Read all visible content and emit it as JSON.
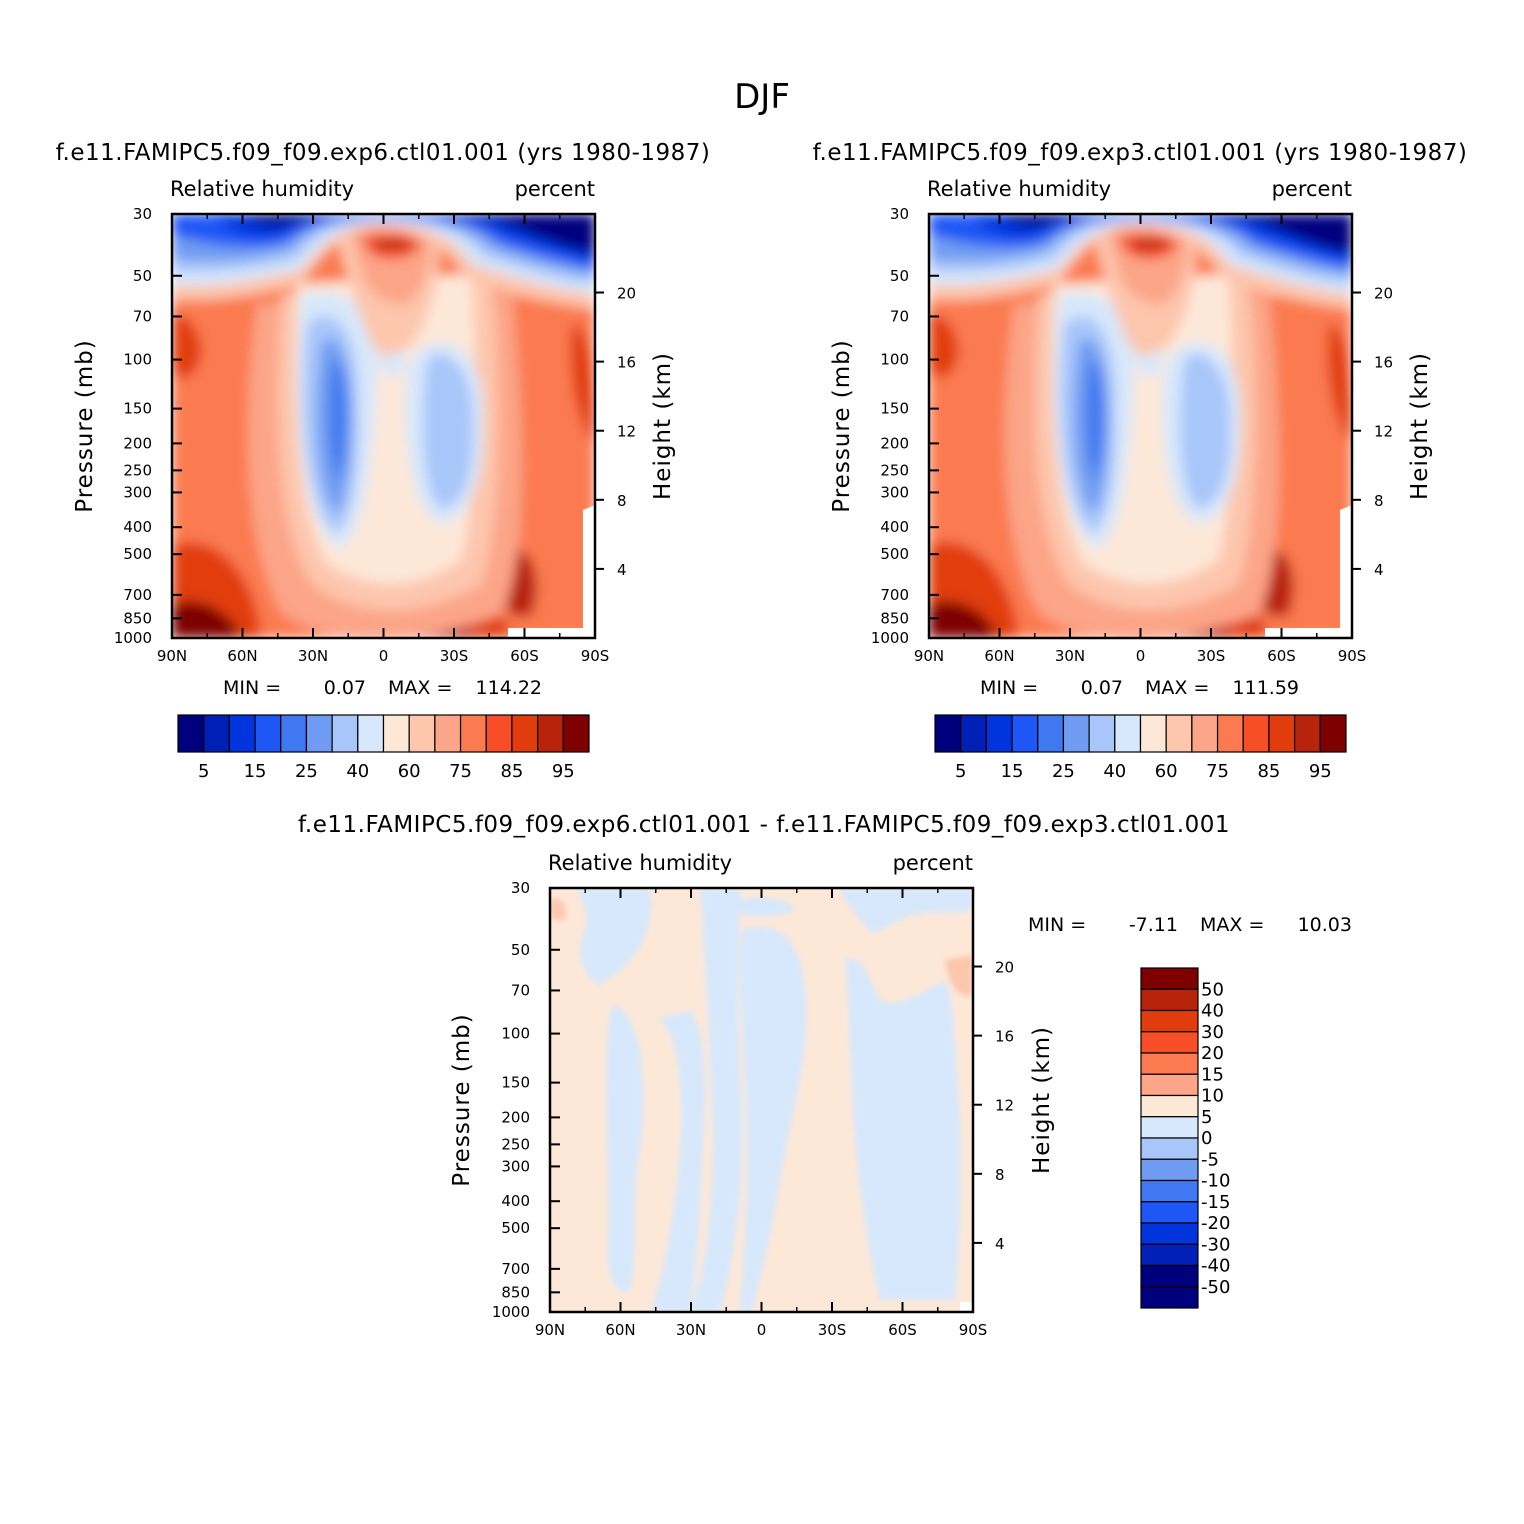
{
  "title": "DJF",
  "panels": [
    {
      "subtitle": "f.e11.FAMIPC5.f09_f09.exp6.ctl01.001 (yrs 1980-1987)",
      "left_label": "Relative humidity",
      "right_label": "percent",
      "stats": {
        "min_label": "MIN =",
        "min": "0.07",
        "max_label": "MAX =",
        "max": "114.22"
      }
    },
    {
      "subtitle": "f.e11.FAMIPC5.f09_f09.exp3.ctl01.001 (yrs 1980-1987)",
      "left_label": "Relative humidity",
      "right_label": "percent",
      "stats": {
        "min_label": "MIN =",
        "min": "0.07",
        "max_label": "MAX =",
        "max": "111.59"
      }
    },
    {
      "subtitle": "f.e11.FAMIPC5.f09_f09.exp6.ctl01.001 - f.e11.FAMIPC5.f09_f09.exp3.ctl01.001",
      "left_label": "Relative humidity",
      "right_label": "percent",
      "stats": {
        "min_label": "MIN =",
        "min": "-7.11",
        "max_label": "MAX =",
        "max": "10.03"
      }
    }
  ],
  "chart_data": [
    {
      "type": "heatmap",
      "xlabel": "",
      "ylabel": "Pressure (mb)",
      "y2label": "Height (km)",
      "x_ticks": [
        "90N",
        "60N",
        "30N",
        "0",
        "30S",
        "60S",
        "90S"
      ],
      "y_ticks": [
        "30",
        "50",
        "70",
        "100",
        "150",
        "200",
        "250",
        "300",
        "400",
        "500",
        "700",
        "850",
        "1000"
      ],
      "y2_ticks": [
        "20",
        "16",
        "12",
        "8",
        "4"
      ],
      "colorbar_levels": [
        "5",
        "15",
        "25",
        "40",
        "60",
        "75",
        "85",
        "95"
      ],
      "min": 0.07,
      "max": 114.22,
      "colors": [
        "#00007f",
        "#0020b8",
        "#0035dd",
        "#1e57f5",
        "#3f78f0",
        "#6f9cf2",
        "#a9c6fa",
        "#d7e8fc",
        "#fde8d8",
        "#fdc6ad",
        "#fca588",
        "#fb7a4f",
        "#f64e26",
        "#e13d0c",
        "#b8240b",
        "#7e0000"
      ]
    },
    {
      "type": "heatmap",
      "xlabel": "",
      "ylabel": "Pressure (mb)",
      "y2label": "Height (km)",
      "x_ticks": [
        "90N",
        "60N",
        "30N",
        "0",
        "30S",
        "60S",
        "90S"
      ],
      "y_ticks": [
        "30",
        "50",
        "70",
        "100",
        "150",
        "200",
        "250",
        "300",
        "400",
        "500",
        "700",
        "850",
        "1000"
      ],
      "y2_ticks": [
        "20",
        "16",
        "12",
        "8",
        "4"
      ],
      "colorbar_levels": [
        "5",
        "15",
        "25",
        "40",
        "60",
        "75",
        "85",
        "95"
      ],
      "min": 0.07,
      "max": 111.59,
      "colors": [
        "#00007f",
        "#0020b8",
        "#0035dd",
        "#1e57f5",
        "#3f78f0",
        "#6f9cf2",
        "#a9c6fa",
        "#d7e8fc",
        "#fde8d8",
        "#fdc6ad",
        "#fca588",
        "#fb7a4f",
        "#f64e26",
        "#e13d0c",
        "#b8240b",
        "#7e0000"
      ]
    },
    {
      "type": "heatmap",
      "xlabel": "",
      "ylabel": "Pressure (mb)",
      "y2label": "Height (km)",
      "x_ticks": [
        "90N",
        "60N",
        "30N",
        "0",
        "30S",
        "60S",
        "90S"
      ],
      "y_ticks": [
        "30",
        "50",
        "70",
        "100",
        "150",
        "200",
        "250",
        "300",
        "400",
        "500",
        "700",
        "850",
        "1000"
      ],
      "y2_ticks": [
        "20",
        "16",
        "12",
        "8",
        "4"
      ],
      "colorbar_levels": [
        "50",
        "40",
        "30",
        "20",
        "15",
        "10",
        "5",
        "0",
        "-5",
        "-10",
        "-15",
        "-20",
        "-30",
        "-40",
        "-50"
      ],
      "min": -7.11,
      "max": 10.03,
      "colors": [
        "#7e0000",
        "#b8240b",
        "#e13d0c",
        "#f64e26",
        "#fb7a4f",
        "#fca588",
        "#fde8d8",
        "#d7e8fc",
        "#a9c6fa",
        "#6f9cf2",
        "#3f78f0",
        "#1e57f5",
        "#0035dd",
        "#0020b8",
        "#00007f"
      ]
    }
  ]
}
